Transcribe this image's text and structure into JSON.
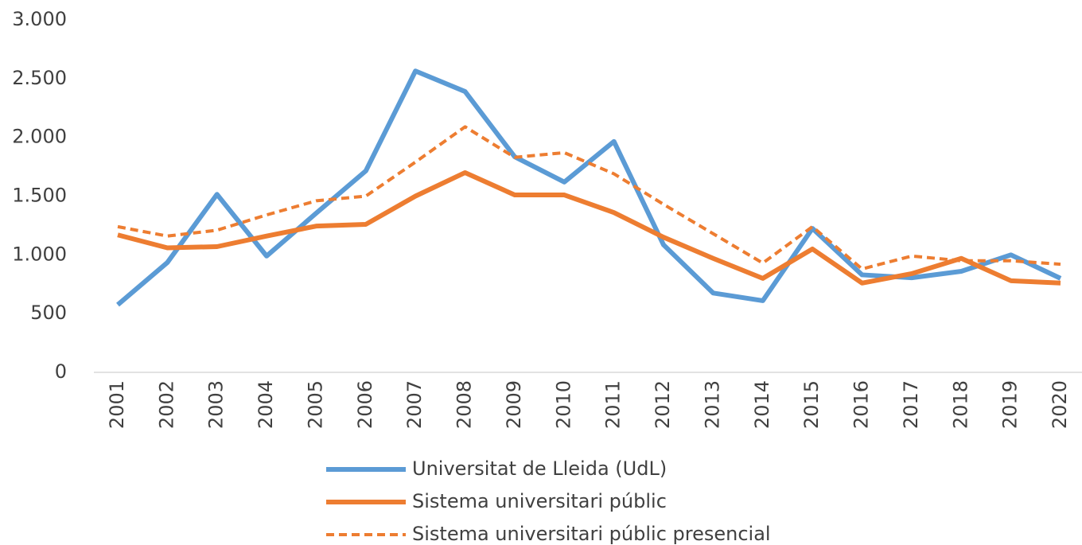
{
  "chart_data": {
    "type": "line",
    "categories": [
      "2001",
      "2002",
      "2003",
      "2004",
      "2005",
      "2006",
      "2007",
      "2008",
      "2009",
      "2010",
      "2011",
      "2012",
      "2013",
      "2014",
      "2015",
      "2016",
      "2017",
      "2018",
      "2019",
      "2020"
    ],
    "series": [
      {
        "name": "Universitat de Lleida (UdL)",
        "color": "#5b9bd5",
        "line_style": "solid",
        "values": [
          575,
          935,
          1515,
          990,
          1355,
          1715,
          2565,
          2390,
          1835,
          1620,
          1965,
          1085,
          675,
          610,
          1225,
          830,
          805,
          860,
          1000,
          800
        ]
      },
      {
        "name": "Sistema universitari públic",
        "color": "#ed7d31",
        "line_style": "solid",
        "values": [
          1170,
          1060,
          1070,
          1160,
          1245,
          1260,
          1500,
          1700,
          1510,
          1510,
          1360,
          1150,
          970,
          800,
          1050,
          760,
          840,
          970,
          780,
          760
        ]
      },
      {
        "name": "Sistema universitari públic presencial",
        "color": "#ed7d31",
        "line_style": "dashed",
        "values": [
          1240,
          1160,
          1210,
          1340,
          1460,
          1500,
          1790,
          2090,
          1830,
          1870,
          1690,
          1430,
          1180,
          930,
          1240,
          880,
          990,
          950,
          950,
          920
        ]
      }
    ],
    "ylim": [
      0,
      3000
    ],
    "yticks": [
      0,
      500,
      {
        "value": 1000,
        "label": "1.000"
      },
      {
        "value": 1500,
        "label": "1.500"
      },
      {
        "value": 2000,
        "label": "2.000"
      },
      {
        "value": 2500,
        "label": "2.500"
      },
      {
        "value": 3000,
        "label": "3.000"
      }
    ],
    "grid": false,
    "legend": "bottom"
  }
}
